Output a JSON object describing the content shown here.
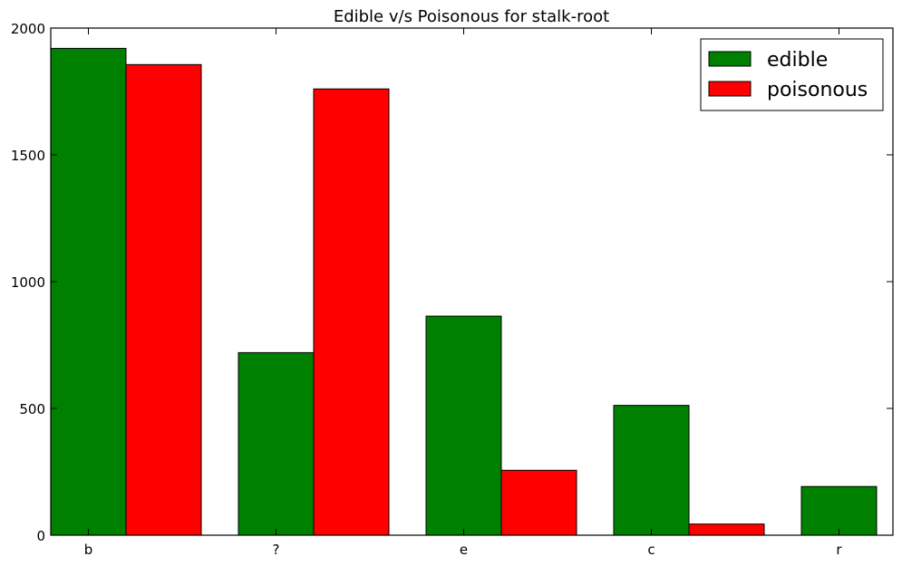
{
  "chart_data": {
    "type": "bar",
    "title": "Edible v/s Poisonous for stalk-root",
    "xlabel": "",
    "ylabel": "",
    "categories": [
      "b",
      "?",
      "e",
      "c",
      "r"
    ],
    "series": [
      {
        "name": "edible",
        "color": "#008000",
        "values": [
          1920,
          720,
          864,
          512,
          192
        ]
      },
      {
        "name": "poisonous",
        "color": "#ff0000",
        "values": [
          1856,
          1760,
          256,
          44,
          0
        ]
      }
    ],
    "ylim": [
      0,
      2000
    ],
    "yticks": [
      0,
      500,
      1000,
      1500,
      2000
    ],
    "grid": false,
    "legend_position": "top-right"
  }
}
